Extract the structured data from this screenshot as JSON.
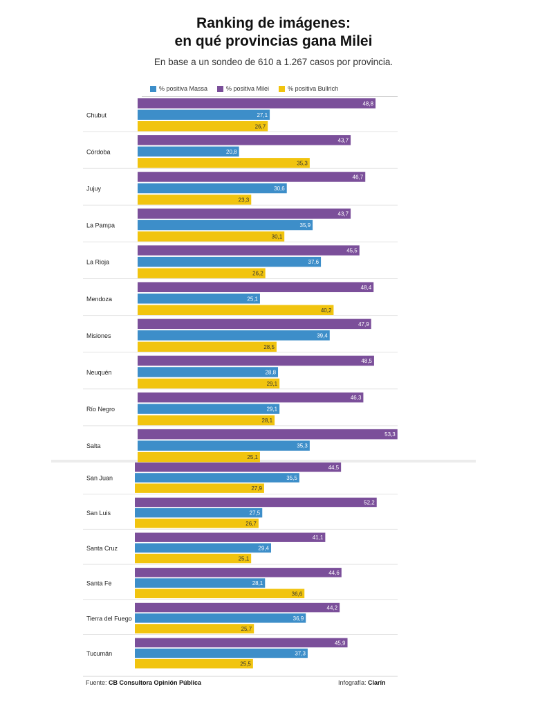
{
  "title_line1": "Ranking de imágenes:",
  "title_line2": "en qué provincias gana Milei",
  "subtitle": "En base a un sondeo de 610 a 1.267 casos por provincia.",
  "footer": {
    "source_label": "Fuente:",
    "source_name": "CB Consultora Opinión Pública",
    "credit_label": "Infografía:",
    "credit_name": "Clarín"
  },
  "colors": {
    "massa": "#3d8ec9",
    "milei": "#7b4f9a",
    "bullrich": "#f1c40f"
  },
  "chart_data": {
    "type": "bar",
    "orientation": "horizontal",
    "title": "Ranking de imágenes: en qué provincias gana Milei",
    "subtitle": "En base a un sondeo de 610 a 1.267 casos por provincia.",
    "legend_position": "top",
    "categories": [
      "Chubut",
      "Córdoba",
      "Jujuy",
      "La Pampa",
      "La Rioja",
      "Mendoza",
      "Misiones",
      "Neuquén",
      "Río Negro",
      "Salta",
      "San Juan",
      "San Luis",
      "Santa Cruz",
      "Santa Fe",
      "Tierra del Fuego",
      "Tucumán"
    ],
    "series": [
      {
        "name": "% positiva Milei",
        "color": "#7b4f9a",
        "values": [
          48.8,
          43.7,
          46.7,
          43.7,
          45.5,
          48.4,
          47.9,
          48.5,
          46.3,
          53.3,
          44.5,
          52.2,
          41.1,
          44.6,
          44.2,
          45.9
        ],
        "labels": [
          "48,8",
          "43,7",
          "46,7",
          "43,7",
          "45,5",
          "48,4",
          "47,9",
          "48,5",
          "46,3",
          "53,3",
          "44,5",
          "52,2",
          "41,1",
          "44,6",
          "44,2",
          "45,9"
        ]
      },
      {
        "name": "% positiva Massa",
        "color": "#3d8ec9",
        "values": [
          27.1,
          20.8,
          30.6,
          35.9,
          37.6,
          25.1,
          39.4,
          28.8,
          29.1,
          35.3,
          35.5,
          27.5,
          29.4,
          28.1,
          36.9,
          37.3
        ],
        "labels": [
          "27,1",
          "20,8",
          "30,6",
          "35,9",
          "37,6",
          "25,1",
          "39,4",
          "28,8",
          "29,1",
          "35,3",
          "35,5",
          "27,5",
          "29,4",
          "28,1",
          "36,9",
          "37,3"
        ]
      },
      {
        "name": "% positiva Bullrich",
        "color": "#f1c40f",
        "values": [
          26.7,
          35.3,
          23.3,
          30.1,
          26.2,
          40.2,
          28.5,
          29.1,
          28.1,
          25.1,
          27.9,
          26.7,
          25.1,
          36.6,
          25.7,
          25.5
        ],
        "labels": [
          "26,7",
          "35,3",
          "23,3",
          "30,1",
          "26,2",
          "40,2",
          "28,5",
          "29,1",
          "28,1",
          "25,1",
          "27,9",
          "26,7",
          "25,1",
          "36,6",
          "25,7",
          "25,5"
        ]
      }
    ],
    "legend_order": [
      "% positiva Massa",
      "% positiva Milei",
      "% positiva Bullrich"
    ],
    "xlim": [
      0,
      53.3
    ]
  }
}
